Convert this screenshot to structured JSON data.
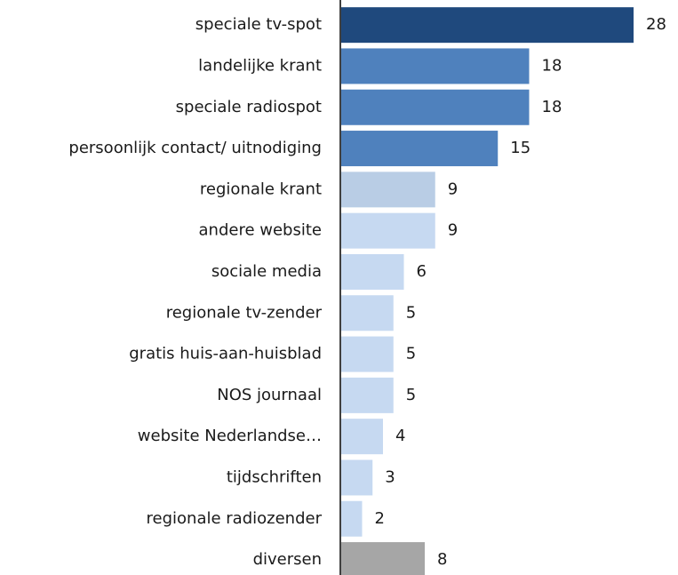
{
  "chart_data": {
    "type": "bar",
    "orientation": "horizontal",
    "categories": [
      "speciale tv-spot",
      "landelijke krant",
      "speciale radiospot",
      "persoonlijk contact/ uitnodiging",
      "regionale krant",
      "andere website",
      "sociale media",
      "regionale tv-zender",
      "gratis huis-aan-huisblad",
      "NOS journaal",
      "website Nederlandse…",
      "tijdschriften",
      "regionale radiozender",
      "diversen"
    ],
    "values": [
      28,
      18,
      18,
      15,
      9,
      9,
      6,
      5,
      5,
      5,
      4,
      3,
      2,
      8
    ],
    "colors": [
      "#1f497d",
      "#4f81bd",
      "#4f81bd",
      "#4f81bd",
      "#b9cde5",
      "#c6d9f1",
      "#c6d9f1",
      "#c6d9f1",
      "#c6d9f1",
      "#c6d9f1",
      "#c6d9f1",
      "#c6d9f1",
      "#c6d9f1",
      "#a6a6a6"
    ]
  }
}
